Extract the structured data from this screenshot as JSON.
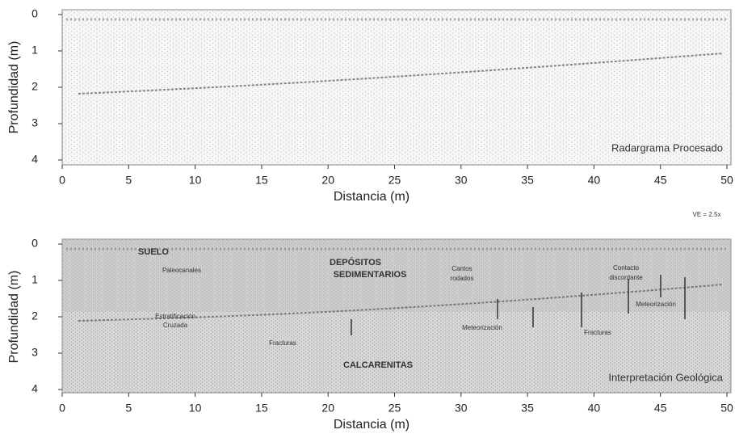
{
  "chart_data": [
    {
      "type": "radargram",
      "xlabel": "Distancia (m)",
      "ylabel": "Profundidad (m)",
      "xlim": [
        0,
        50
      ],
      "xticks": [
        0,
        5,
        10,
        15,
        20,
        25,
        30,
        35,
        40,
        45,
        50
      ],
      "ylim": [
        4,
        0
      ],
      "yticks": [
        0,
        1,
        2,
        3,
        4
      ],
      "panel_label": "Radargrama Procesado",
      "note": "VE = 2.5x",
      "annotations": []
    },
    {
      "type": "radargram",
      "xlabel": "Distancia (m)",
      "ylabel": "Profundidad (m)",
      "xlim": [
        0,
        50
      ],
      "xticks": [
        0,
        5,
        10,
        15,
        20,
        25,
        30,
        35,
        40,
        45,
        50
      ],
      "ylim": [
        4,
        0
      ],
      "yticks": [
        0,
        1,
        2,
        3,
        4
      ],
      "panel_label": "Interpretación Geológica",
      "annotations": [
        "SUELO",
        "Paleocanales",
        "DEPÓSITOS",
        "SEDIMENTARIOS",
        "Cantos",
        "rodados",
        "Contacto",
        "discordante",
        "Estratificación",
        "Cruzada",
        "Fracturas",
        "Meteorización",
        "Fracturas",
        "Meteorización",
        "CALCARENITAS"
      ]
    }
  ]
}
